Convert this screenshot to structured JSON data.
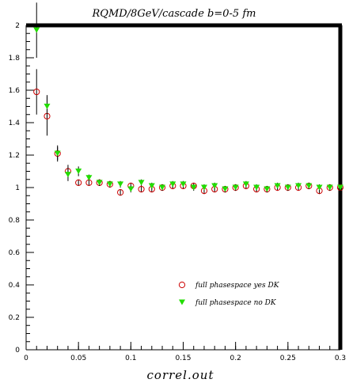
{
  "chart_data": {
    "type": "scatter",
    "title": "RQMD/8GeV/cascade b=0-5 fm",
    "xlabel": "correl.out",
    "ylabel": "",
    "xlim": [
      0,
      0.3
    ],
    "ylim": [
      0,
      2
    ],
    "x_ticks": [
      "0",
      "0.05",
      "0.1",
      "0.15",
      "0.2",
      "0.25",
      "0.3"
    ],
    "y_ticks": [
      "0",
      "0.2",
      "0.4",
      "0.6",
      "0.8",
      "1",
      "1.2",
      "1.4",
      "1.6",
      "1.8",
      "2"
    ],
    "grid": false,
    "legend_position": "lower-right",
    "series": [
      {
        "name": "full phasespace yes DK",
        "marker": "open-circle",
        "color": "#cc0000",
        "x": [
          0.01,
          0.02,
          0.03,
          0.04,
          0.05,
          0.06,
          0.07,
          0.08,
          0.09,
          0.1,
          0.11,
          0.12,
          0.13,
          0.14,
          0.15,
          0.16,
          0.17,
          0.18,
          0.19,
          0.2,
          0.21,
          0.22,
          0.23,
          0.24,
          0.25,
          0.26,
          0.27,
          0.28,
          0.29,
          0.3
        ],
        "y": [
          1.59,
          1.44,
          1.21,
          1.1,
          1.03,
          1.03,
          1.03,
          1.02,
          0.97,
          1.01,
          0.99,
          0.99,
          1.0,
          1.01,
          1.01,
          1.01,
          0.98,
          0.99,
          0.99,
          1.0,
          1.01,
          0.99,
          0.99,
          1.0,
          1.0,
          1.0,
          1.01,
          0.98,
          1.0,
          1.0
        ],
        "err": [
          0.14,
          0.12,
          0.05,
          0.04,
          0.02,
          0.02,
          0.02,
          0.02,
          0.02,
          0.02,
          0.02,
          0.02,
          0.02,
          0.02,
          0.02,
          0.02,
          0.02,
          0.02,
          0.02,
          0.02,
          0.02,
          0.02,
          0.02,
          0.02,
          0.02,
          0.02,
          0.02,
          0.02,
          0.02,
          0.02
        ]
      },
      {
        "name": "full phasespace no DK",
        "marker": "filled-triangle-down",
        "color": "#22dd00",
        "x": [
          0.01,
          0.02,
          0.03,
          0.04,
          0.05,
          0.06,
          0.07,
          0.08,
          0.09,
          0.1,
          0.11,
          0.12,
          0.13,
          0.14,
          0.15,
          0.16,
          0.17,
          0.18,
          0.19,
          0.2,
          0.21,
          0.22,
          0.23,
          0.24,
          0.25,
          0.26,
          0.27,
          0.28,
          0.29,
          0.3
        ],
        "y": [
          1.97,
          1.5,
          1.21,
          1.08,
          1.1,
          1.06,
          1.03,
          1.02,
          1.02,
          0.99,
          1.03,
          1.01,
          1.0,
          1.02,
          1.02,
          1.0,
          1.0,
          1.01,
          0.99,
          1.0,
          1.02,
          1.0,
          0.99,
          1.01,
          1.0,
          1.01,
          1.01,
          1.0,
          1.0,
          1.0
        ],
        "err": [
          0.17,
          0.07,
          0.04,
          0.04,
          0.03,
          0.02,
          0.02,
          0.02,
          0.02,
          0.02,
          0.02,
          0.02,
          0.02,
          0.02,
          0.02,
          0.02,
          0.02,
          0.02,
          0.02,
          0.02,
          0.02,
          0.02,
          0.02,
          0.02,
          0.02,
          0.02,
          0.02,
          0.02,
          0.02,
          0.02
        ]
      }
    ]
  }
}
